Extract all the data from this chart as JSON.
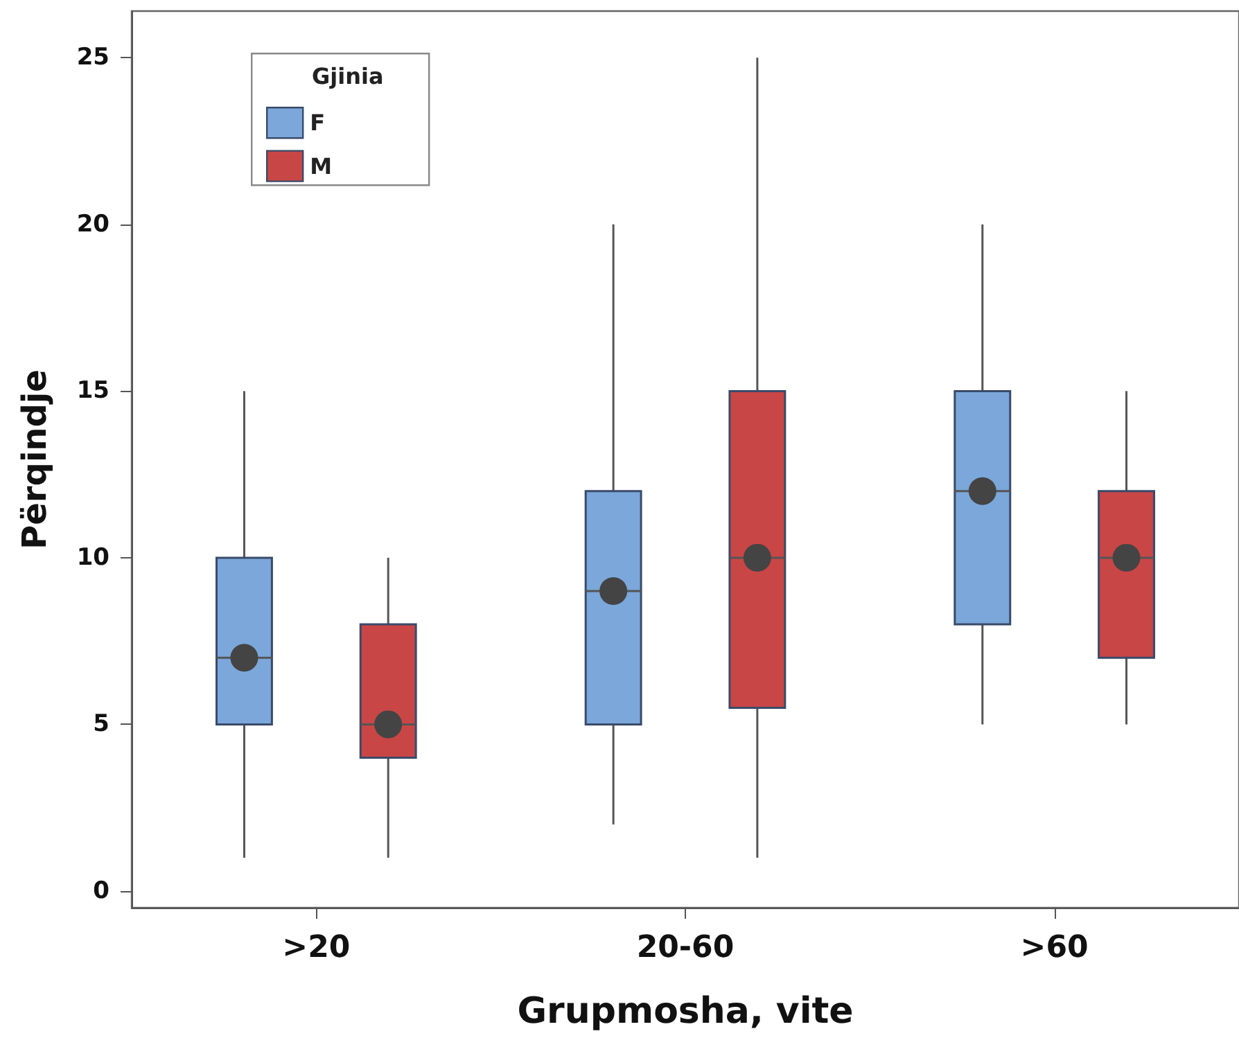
{
  "chart_data": {
    "type": "box",
    "xlabel": "Grupmosha, vite",
    "ylabel": "Përqindje",
    "legend_title": "Gjinia",
    "categories": [
      ">20",
      "20-60",
      ">60"
    ],
    "series": [
      {
        "name": "F",
        "color": "#7ba7da",
        "boxes": [
          {
            "low": 1,
            "q1": 5,
            "median": 7,
            "q3": 10,
            "high": 15,
            "mean": 7
          },
          {
            "low": 2,
            "q1": 5,
            "median": 9,
            "q3": 12,
            "high": 20,
            "mean": 9
          },
          {
            "low": 5,
            "q1": 8,
            "median": 12,
            "q3": 15,
            "high": 20,
            "mean": 12
          }
        ]
      },
      {
        "name": "M",
        "color": "#c94646",
        "boxes": [
          {
            "low": 1,
            "q1": 4,
            "median": 5,
            "q3": 8,
            "high": 10,
            "mean": 5
          },
          {
            "low": 1,
            "q1": 5.5,
            "median": 10,
            "q3": 15,
            "high": 25,
            "mean": 10
          },
          {
            "low": 5,
            "q1": 7,
            "median": 10,
            "q3": 12,
            "high": 15,
            "mean": 10
          }
        ]
      }
    ],
    "ylim": [
      -0.5,
      26.4
    ],
    "yticks": [
      0,
      5,
      10,
      15,
      20,
      25
    ],
    "grid": false,
    "legend": "top left"
  }
}
